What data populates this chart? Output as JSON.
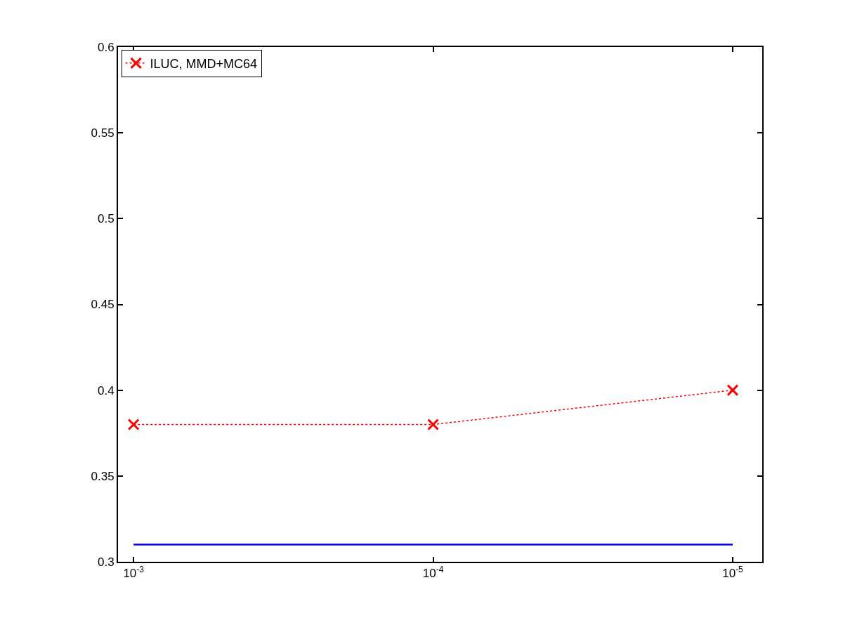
{
  "chart_data": {
    "type": "line",
    "x": [
      0.001,
      0.0001,
      1e-05
    ],
    "series": [
      {
        "name": "ILUC, MMD+MC64",
        "color": "#ff0000",
        "values": [
          0.38,
          0.38,
          0.4
        ],
        "marker": "cross",
        "line_style": "dotted"
      },
      {
        "color": "#0000ff",
        "values": [
          0.31,
          0.31,
          0.31
        ],
        "marker": "none",
        "line_style": "solid"
      }
    ],
    "log": "x",
    "xlim": [
      0.001127,
      7.97e-06
    ],
    "xticks": [
      {
        "value": 0.001,
        "label": "10$^{-3}$"
      },
      {
        "value": 0.0001,
        "label": "10$^{-4}$"
      },
      {
        "value": 1e-05,
        "label": "10$^{-5}$"
      }
    ],
    "ylim": [
      0.3,
      0.6
    ],
    "yticks": [
      0.3,
      0.35,
      0.4,
      0.45,
      0.5,
      0.55,
      0.6
    ],
    "legend": "top left"
  }
}
